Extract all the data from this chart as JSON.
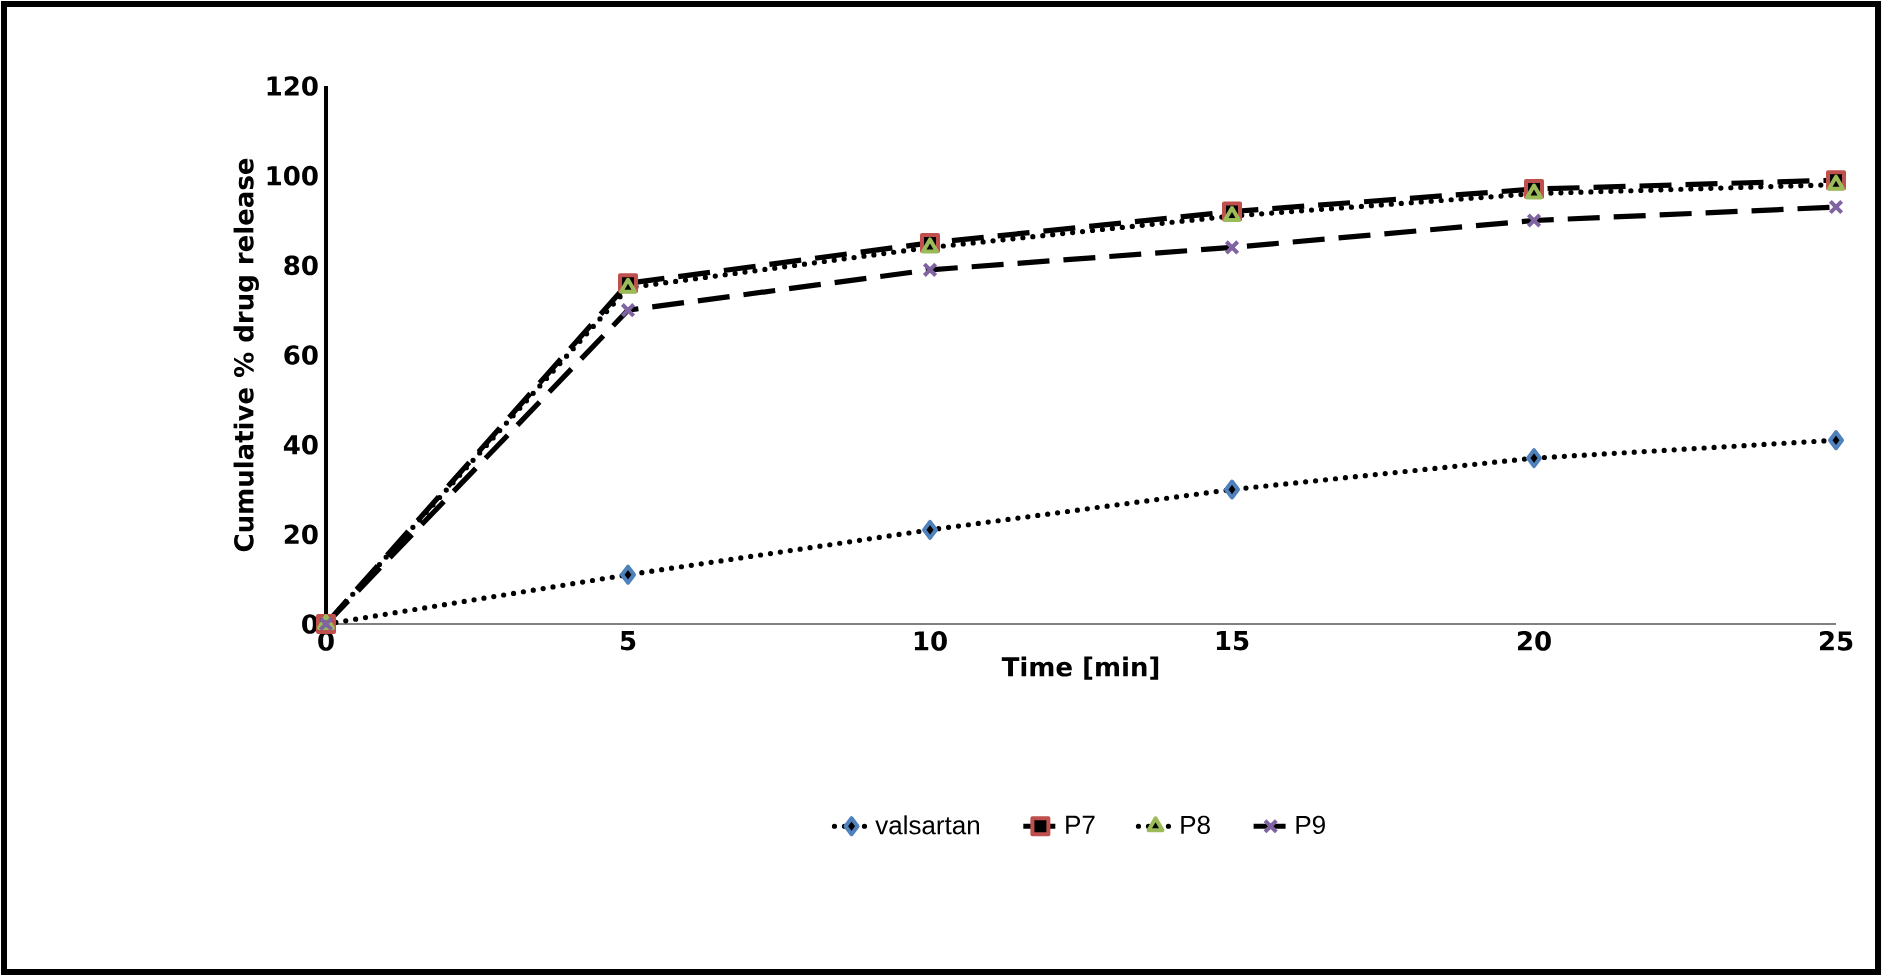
{
  "chart_data": {
    "type": "line",
    "xlabel": "Time [min]",
    "ylabel": "Cumulative % drug release",
    "x": [
      0,
      5,
      10,
      15,
      20,
      25
    ],
    "series": [
      {
        "name": "valsartan",
        "color": "#4f81bd",
        "marker": "diamond",
        "line_style": "dotted",
        "values": [
          0,
          11,
          21,
          30,
          37,
          41
        ]
      },
      {
        "name": "P7",
        "color": "#c0504d",
        "marker": "square",
        "line_style": "dashed",
        "values": [
          0,
          76,
          85,
          92,
          97,
          99
        ]
      },
      {
        "name": "P8",
        "color": "#9bbb59",
        "marker": "triangle",
        "line_style": "dotted",
        "values": [
          0,
          75,
          84,
          91,
          96,
          98
        ]
      },
      {
        "name": "P9",
        "color": "#8064a2",
        "marker": "cross",
        "line_style": "dashed",
        "values": [
          0,
          70,
          79,
          84,
          90,
          93
        ]
      }
    ],
    "xlim": [
      0,
      25
    ],
    "xticks": [
      0,
      5,
      10,
      15,
      20,
      25
    ],
    "ylim": [
      0,
      120
    ],
    "yticks": [
      0,
      20,
      40,
      60,
      80,
      100,
      120
    ],
    "grid": false,
    "legend": "bottom"
  }
}
